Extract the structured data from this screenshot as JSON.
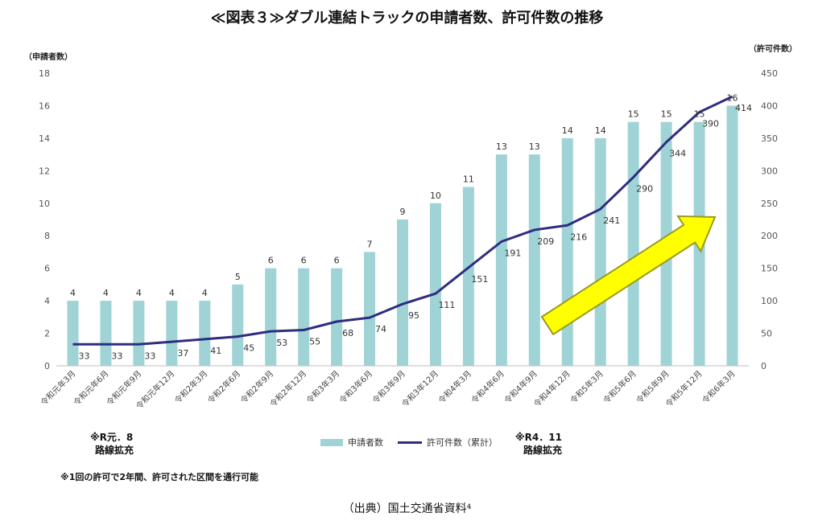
{
  "title": "≪図表３≫ダブル連結トラックの申請者数、許可件数の推移",
  "source": "（出典）国土交通省資料⁴",
  "footnote": "※1回の許可で2年間、許可された区間を通行可能",
  "notes": [
    {
      "line1": "※R元．8",
      "line2": "路線拡充"
    },
    {
      "line1": "※R4．11",
      "line2": "路線拡充"
    }
  ],
  "legend": {
    "bar": "申請者数",
    "line": "許可件数（累計）"
  },
  "colors": {
    "bar": "#9fd3d6",
    "line": "#2e2d7f",
    "arrow_fill": "#ffff00",
    "arrow_stroke": "#9a9a20"
  },
  "chart_data": {
    "type": "bar+line",
    "categories": [
      "令和元年3月",
      "令和元年6月",
      "令和元年9月",
      "令和元年12月",
      "令和2年3月",
      "令和2年6月",
      "令和2年9月",
      "令和2年12月",
      "令和3年3月",
      "令和3年6月",
      "令和3年9月",
      "令和3年12月",
      "令和4年3月",
      "令和4年6月",
      "令和4年9月",
      "令和4年12月",
      "令和5年3月",
      "令和5年6月",
      "令和5年9月",
      "令和5年12月",
      "令和6年3月"
    ],
    "series": [
      {
        "name": "申請者数",
        "type": "bar",
        "axis": "left",
        "values": [
          4,
          4,
          4,
          4,
          4,
          5,
          6,
          6,
          6,
          7,
          9,
          10,
          11,
          13,
          13,
          14,
          14,
          15,
          15,
          15,
          16
        ]
      },
      {
        "name": "許可件数（累計）",
        "type": "line",
        "axis": "right",
        "values": [
          33,
          33,
          33,
          37,
          41,
          45,
          53,
          55,
          68,
          74,
          95,
          111,
          151,
          191,
          209,
          216,
          241,
          290,
          344,
          390,
          414
        ]
      }
    ],
    "y_left": {
      "label": "（申請者数）",
      "min": 0,
      "max": 18,
      "step": 2
    },
    "y_right": {
      "label": "（許可件数）",
      "min": 0,
      "max": 450,
      "step": 50
    },
    "grid": false,
    "legend_position": "bottom"
  }
}
